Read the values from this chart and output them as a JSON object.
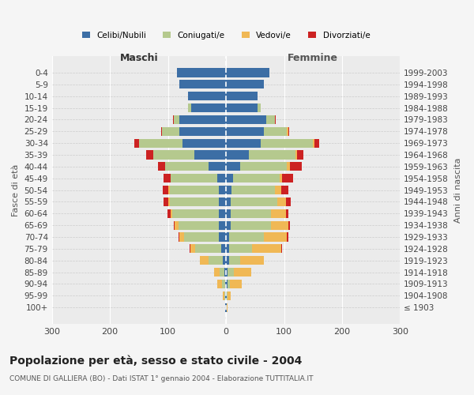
{
  "age_groups": [
    "100+",
    "95-99",
    "90-94",
    "85-89",
    "80-84",
    "75-79",
    "70-74",
    "65-69",
    "60-64",
    "55-59",
    "50-54",
    "45-49",
    "40-44",
    "35-39",
    "30-34",
    "25-29",
    "20-24",
    "15-19",
    "10-14",
    "5-9",
    "0-4"
  ],
  "birth_years": [
    "≤ 1903",
    "1904-1908",
    "1909-1913",
    "1914-1918",
    "1919-1923",
    "1924-1928",
    "1929-1933",
    "1934-1938",
    "1939-1943",
    "1944-1948",
    "1949-1953",
    "1954-1958",
    "1959-1963",
    "1964-1968",
    "1969-1973",
    "1974-1978",
    "1979-1983",
    "1984-1988",
    "1989-1993",
    "1994-1998",
    "1999-2003"
  ],
  "maschi_celibi": [
    1,
    1,
    2,
    3,
    5,
    8,
    12,
    12,
    12,
    12,
    12,
    15,
    30,
    55,
    75,
    80,
    80,
    60,
    65,
    80,
    85
  ],
  "maschi_coniugati": [
    0,
    2,
    5,
    8,
    25,
    45,
    60,
    70,
    80,
    85,
    85,
    80,
    75,
    70,
    75,
    30,
    10,
    5,
    0,
    0,
    0
  ],
  "maschi_vedovi": [
    0,
    3,
    8,
    10,
    15,
    8,
    8,
    6,
    4,
    3,
    2,
    1,
    0,
    0,
    0,
    0,
    0,
    0,
    0,
    0,
    0
  ],
  "maschi_divorziati": [
    0,
    0,
    0,
    0,
    0,
    2,
    2,
    2,
    5,
    8,
    10,
    12,
    12,
    12,
    8,
    2,
    1,
    0,
    0,
    0,
    0
  ],
  "femmine_nubili": [
    1,
    1,
    2,
    3,
    5,
    5,
    5,
    8,
    8,
    8,
    10,
    12,
    25,
    40,
    60,
    65,
    70,
    55,
    55,
    65,
    75
  ],
  "femmine_coniugate": [
    0,
    2,
    5,
    10,
    20,
    40,
    60,
    70,
    70,
    80,
    75,
    80,
    80,
    80,
    90,
    40,
    15,
    5,
    0,
    0,
    0
  ],
  "femmine_vedove": [
    1,
    5,
    20,
    30,
    40,
    50,
    40,
    30,
    25,
    15,
    10,
    5,
    5,
    3,
    2,
    2,
    0,
    0,
    0,
    0,
    0
  ],
  "femmine_divorziate": [
    0,
    0,
    0,
    0,
    0,
    2,
    2,
    2,
    5,
    8,
    12,
    18,
    20,
    10,
    8,
    2,
    1,
    0,
    0,
    0,
    0
  ],
  "colors": {
    "celibi": "#3c6ea5",
    "coniugati": "#b5c98e",
    "vedovi": "#f0b855",
    "divorziati": "#cc2222"
  },
  "title": "Popolazione per età, sesso e stato civile - 2004",
  "subtitle": "COMUNE DI GALLIERA (BO) - Dati ISTAT 1° gennaio 2004 - Elaborazione TUTTITALIA.IT",
  "ylabel_left": "Fasce di età",
  "ylabel_right": "Anni di nascita",
  "label_maschi": "Maschi",
  "label_femmine": "Femmine",
  "legend_labels": [
    "Celibi/Nubili",
    "Coniugati/e",
    "Vedovi/e",
    "Divorziati/e"
  ],
  "xlim": 300,
  "xticks": [
    -300,
    -200,
    -100,
    0,
    100,
    200,
    300
  ],
  "xtick_labels": [
    "300",
    "200",
    "100",
    "0",
    "100",
    "200",
    "300"
  ],
  "bg_color": "#f5f5f5",
  "plot_bg": "#ebebeb"
}
